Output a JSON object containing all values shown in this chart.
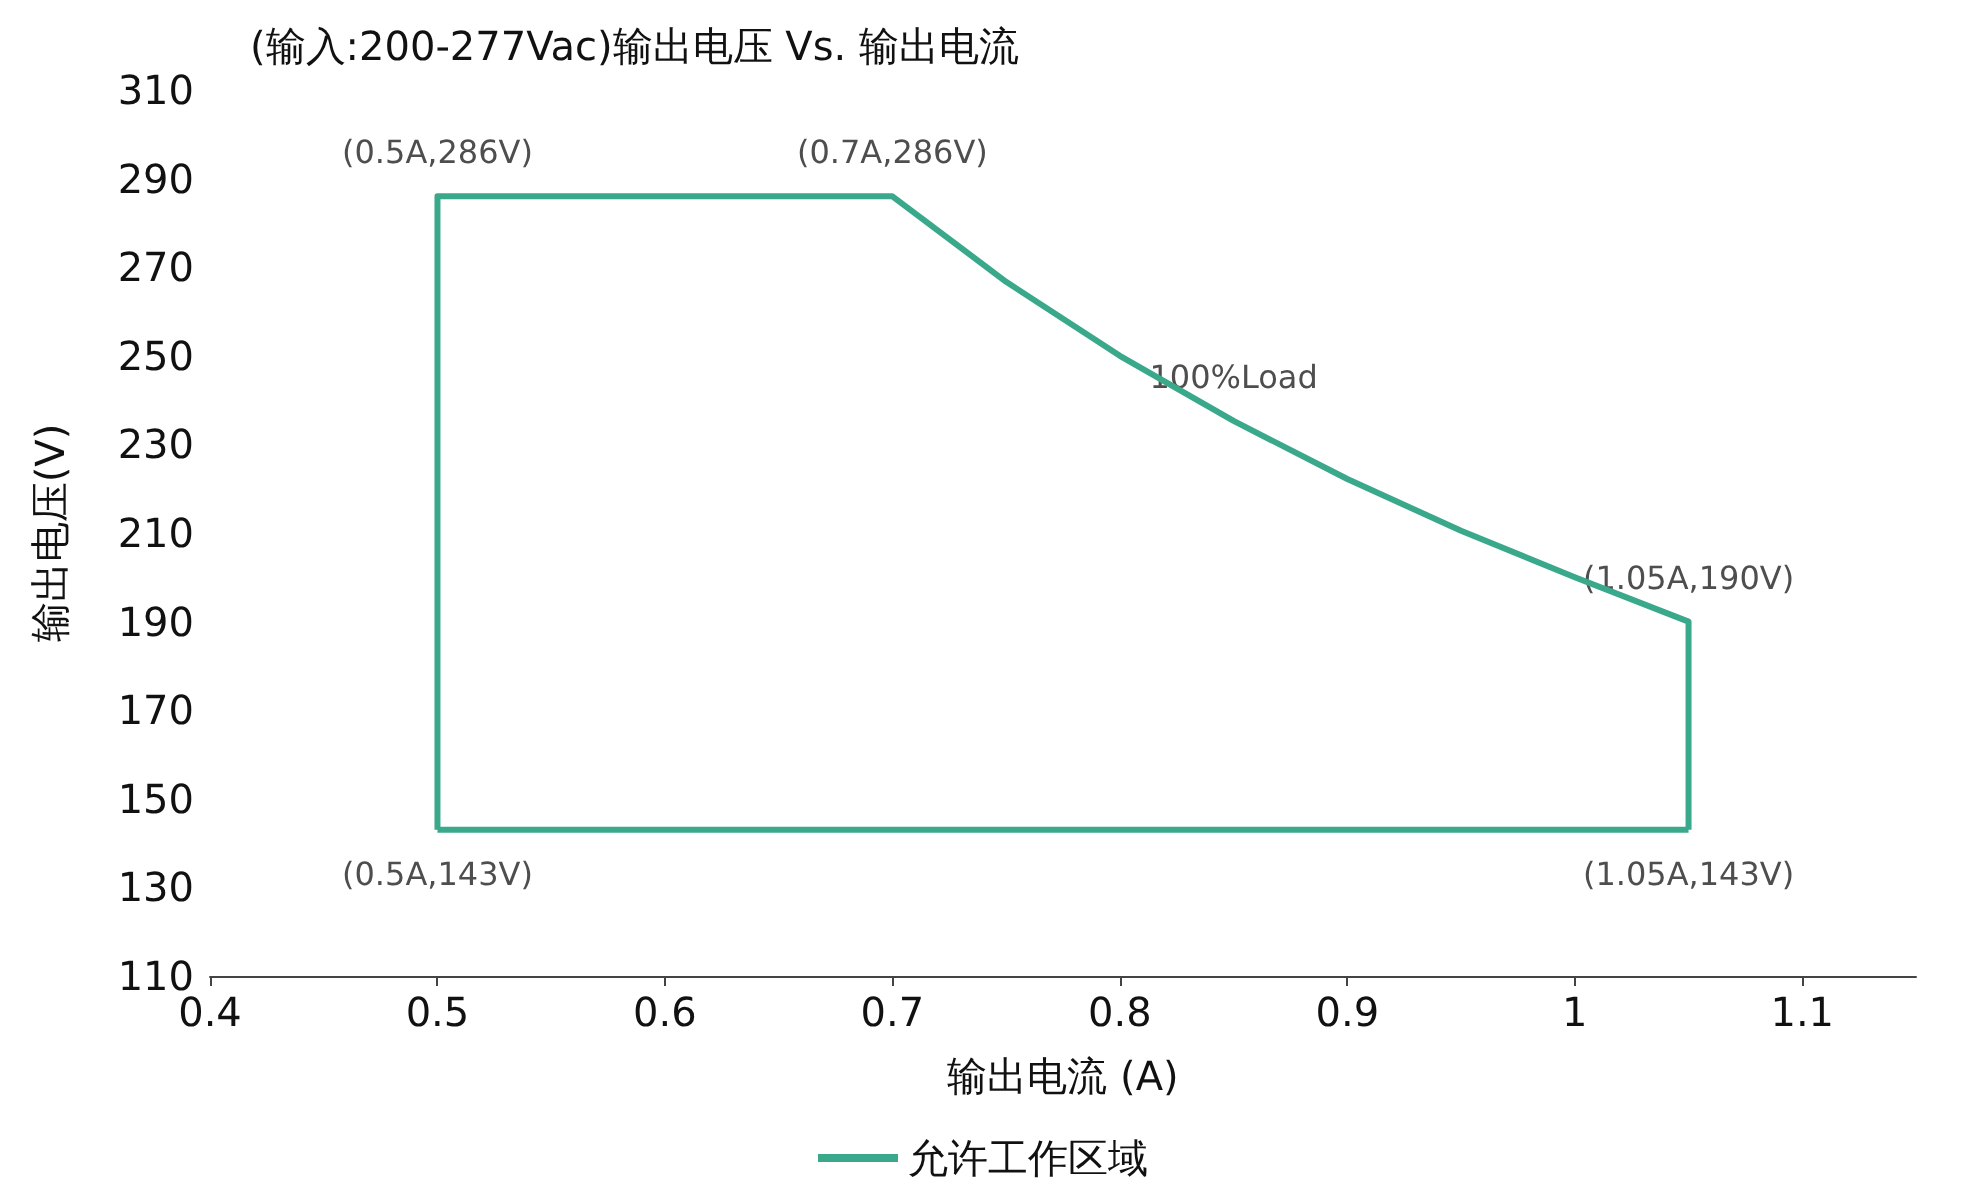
{
  "chart_data": {
    "type": "line",
    "title": "(输入:200-277Vac)输出电压 Vs. 输出电流",
    "xlabel": "输出电流 (A)",
    "ylabel": "输出电压(V)",
    "series": [
      {
        "name": "允许工作区域",
        "color": "#3aa88a",
        "x": [
          0.5,
          0.5,
          0.7,
          0.75,
          0.8,
          0.85,
          0.9,
          0.95,
          1.0,
          1.05,
          1.05
        ],
        "values": [
          143,
          286,
          286,
          266.7,
          250,
          235.3,
          222.2,
          210.5,
          200,
          190,
          143
        ]
      },
      {
        "color": "#3aa88a",
        "x": [
          0.5,
          1.05
        ],
        "values": [
          143,
          143
        ]
      }
    ],
    "xlim": [
      0.4,
      1.15
    ],
    "xticks": [
      0.4,
      0.5,
      0.6,
      0.7,
      0.8,
      0.9,
      1,
      1.1
    ],
    "ylim": [
      110,
      310
    ],
    "yticks": [
      110,
      130,
      150,
      170,
      190,
      210,
      230,
      250,
      270,
      290,
      310
    ],
    "annotations": [
      {
        "text": "(0.5A,286V)",
        "x": 0.5,
        "y": 286
      },
      {
        "text": "(0.7A,286V)",
        "x": 0.7,
        "y": 286
      },
      {
        "text": "100%Load",
        "x": 0.85,
        "y": 235.3
      },
      {
        "text": "(1.05A,190V)",
        "x": 1.05,
        "y": 190
      },
      {
        "text": "(0.5A,143V)",
        "x": 0.5,
        "y": 143
      },
      {
        "text": "(1.05A,143V)",
        "x": 1.05,
        "y": 143
      }
    ],
    "grid": false,
    "legend": "bottom",
    "marker": "none",
    "line_style": "solid"
  }
}
